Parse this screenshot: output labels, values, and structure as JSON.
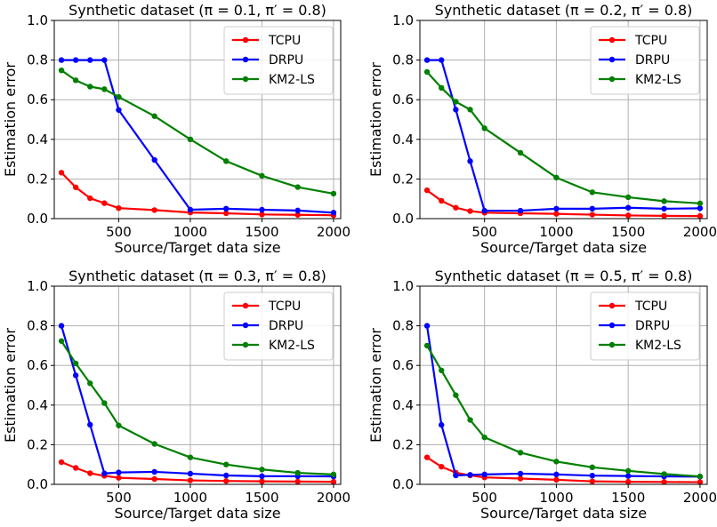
{
  "chart_data": [
    {
      "type": "line",
      "title": "Synthetic dataset (π = 0.1, π′ = 0.8)",
      "xlabel": "Source/Target data size",
      "ylabel": "Estimation error",
      "xlim": [
        50,
        2050
      ],
      "ylim": [
        0,
        1.0
      ],
      "xticks": [
        500,
        1000,
        1500,
        2000
      ],
      "yticks": [
        0.0,
        0.2,
        0.4,
        0.6,
        0.8,
        1.0
      ],
      "grid": true,
      "legend": "top-right",
      "x": [
        100,
        200,
        300,
        400,
        500,
        750,
        1000,
        1250,
        1500,
        1750,
        2000
      ],
      "series": [
        {
          "name": "TCPU",
          "color": "#ff0000",
          "values": [
            0.232,
            0.158,
            0.103,
            0.078,
            0.053,
            0.043,
            0.031,
            0.027,
            0.021,
            0.019,
            0.017
          ]
        },
        {
          "name": "DRPU",
          "color": "#0000ff",
          "values": [
            0.8,
            0.8,
            0.8,
            0.8,
            0.548,
            0.296,
            0.045,
            0.05,
            0.045,
            0.041,
            0.03
          ]
        },
        {
          "name": "KM2-LS",
          "color": "#008000",
          "values": [
            0.748,
            0.698,
            0.666,
            0.653,
            0.614,
            0.517,
            0.4,
            0.29,
            0.216,
            0.159,
            0.126
          ]
        }
      ]
    },
    {
      "type": "line",
      "title": "Synthetic dataset (π = 0.2, π′ = 0.8)",
      "xlabel": "Source/Target data size",
      "ylabel": "Estimation error",
      "xlim": [
        50,
        2050
      ],
      "ylim": [
        0,
        1.0
      ],
      "xticks": [
        500,
        1000,
        1500,
        2000
      ],
      "yticks": [
        0.0,
        0.2,
        0.4,
        0.6,
        0.8,
        1.0
      ],
      "grid": true,
      "legend": "top-right",
      "x": [
        100,
        200,
        300,
        400,
        500,
        750,
        1000,
        1250,
        1500,
        1750,
        2000
      ],
      "series": [
        {
          "name": "TCPU",
          "color": "#ff0000",
          "values": [
            0.143,
            0.09,
            0.055,
            0.038,
            0.03,
            0.027,
            0.024,
            0.02,
            0.016,
            0.014,
            0.013
          ]
        },
        {
          "name": "DRPU",
          "color": "#0000ff",
          "values": [
            0.8,
            0.8,
            0.55,
            0.29,
            0.04,
            0.04,
            0.05,
            0.05,
            0.055,
            0.05,
            0.052
          ]
        },
        {
          "name": "KM2-LS",
          "color": "#008000",
          "values": [
            0.74,
            0.66,
            0.59,
            0.55,
            0.456,
            0.332,
            0.207,
            0.133,
            0.108,
            0.088,
            0.077
          ]
        }
      ]
    },
    {
      "type": "line",
      "title": "Synthetic dataset (π = 0.3, π′ = 0.8)",
      "xlabel": "Source/Target data size",
      "ylabel": "Estimation error",
      "xlim": [
        50,
        2050
      ],
      "ylim": [
        0,
        1.0
      ],
      "xticks": [
        500,
        1000,
        1500,
        2000
      ],
      "yticks": [
        0.0,
        0.2,
        0.4,
        0.6,
        0.8,
        1.0
      ],
      "grid": true,
      "legend": "top-right",
      "x": [
        100,
        200,
        300,
        400,
        500,
        750,
        1000,
        1250,
        1500,
        1750,
        2000
      ],
      "series": [
        {
          "name": "TCPU",
          "color": "#ff0000",
          "values": [
            0.112,
            0.083,
            0.056,
            0.043,
            0.033,
            0.027,
            0.02,
            0.017,
            0.015,
            0.014,
            0.013
          ]
        },
        {
          "name": "DRPU",
          "color": "#0000ff",
          "values": [
            0.8,
            0.55,
            0.301,
            0.055,
            0.06,
            0.063,
            0.054,
            0.045,
            0.041,
            0.041,
            0.04
          ]
        },
        {
          "name": "KM2-LS",
          "color": "#008000",
          "values": [
            0.723,
            0.61,
            0.51,
            0.41,
            0.297,
            0.204,
            0.136,
            0.1,
            0.075,
            0.058,
            0.05
          ]
        }
      ]
    },
    {
      "type": "line",
      "title": "Synthetic dataset (π = 0.5, π′ = 0.8)",
      "xlabel": "Source/Target data size",
      "ylabel": "Estimation error",
      "xlim": [
        50,
        2050
      ],
      "ylim": [
        0,
        1.0
      ],
      "xticks": [
        500,
        1000,
        1500,
        2000
      ],
      "yticks": [
        0.0,
        0.2,
        0.4,
        0.6,
        0.8,
        1.0
      ],
      "grid": true,
      "legend": "top-right",
      "x": [
        100,
        200,
        300,
        400,
        500,
        750,
        1000,
        1250,
        1500,
        1750,
        2000
      ],
      "series": [
        {
          "name": "TCPU",
          "color": "#ff0000",
          "values": [
            0.136,
            0.089,
            0.059,
            0.045,
            0.035,
            0.029,
            0.023,
            0.015,
            0.013,
            0.012,
            0.011
          ]
        },
        {
          "name": "DRPU",
          "color": "#0000ff",
          "values": [
            0.8,
            0.3,
            0.045,
            0.048,
            0.05,
            0.054,
            0.05,
            0.044,
            0.042,
            0.04,
            0.039
          ]
        },
        {
          "name": "KM2-LS",
          "color": "#008000",
          "values": [
            0.7,
            0.575,
            0.45,
            0.325,
            0.237,
            0.16,
            0.115,
            0.086,
            0.068,
            0.052,
            0.04
          ]
        }
      ]
    }
  ]
}
